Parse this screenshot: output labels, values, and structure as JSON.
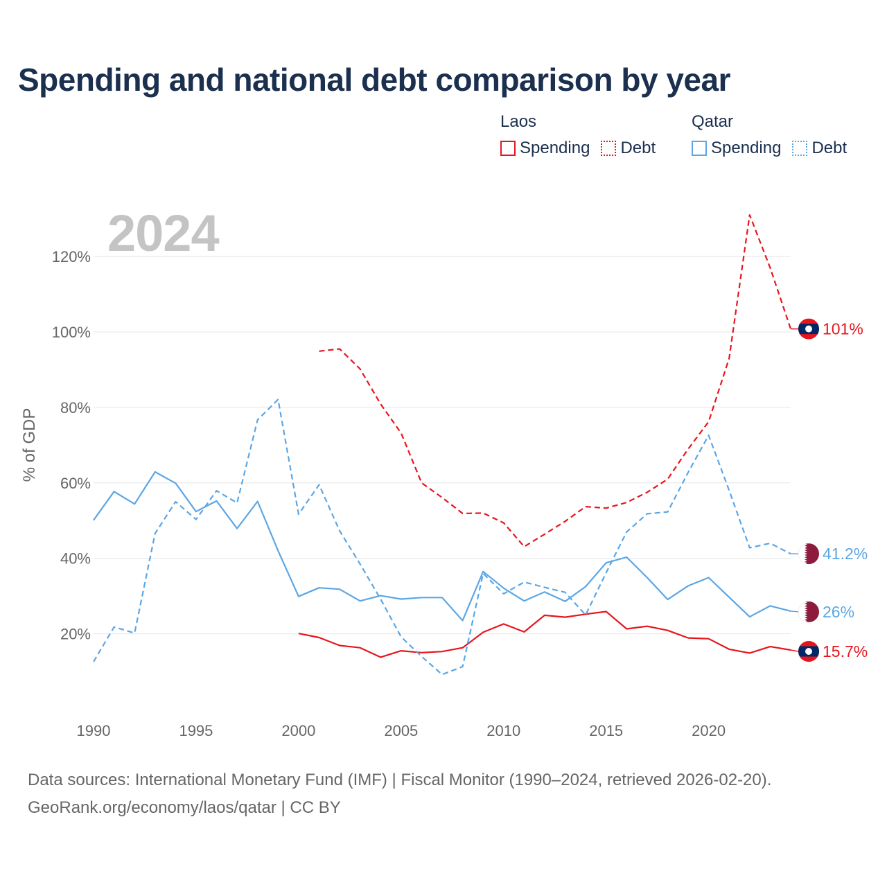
{
  "title": "Spending and national debt comparison by year",
  "year_label": "2024",
  "legend": {
    "laos": {
      "name": "Laos",
      "spending": "Spending",
      "debt": "Debt"
    },
    "qatar": {
      "name": "Qatar",
      "spending": "Spending",
      "debt": "Debt"
    }
  },
  "footer": {
    "line1": "Data sources: International Monetary Fund (IMF) | Fiscal Monitor (1990–2024, retrieved 2026-02-20).",
    "line2": "GeoRank.org/economy/laos/qatar | CC BY"
  },
  "colors": {
    "laos": "#e8141c",
    "qatar": "#5aa6e6",
    "grid": "#e6e6e6",
    "axis_text": "#666666",
    "laos_flag_blue": "#002868",
    "qatar_flag_maroon": "#8d1b3d"
  },
  "chart_data": {
    "type": "line",
    "ylabel": "% of GDP",
    "xlim": [
      1990,
      2024
    ],
    "ylim": [
      0,
      130
    ],
    "x_ticks": [
      1990,
      1995,
      2000,
      2005,
      2010,
      2015,
      2020
    ],
    "y_ticks": [
      {
        "value": 20,
        "label": "20%"
      },
      {
        "value": 40,
        "label": "40%"
      },
      {
        "value": 60,
        "label": "60%"
      },
      {
        "value": 80,
        "label": "80%"
      },
      {
        "value": 100,
        "label": "100%"
      },
      {
        "value": 120,
        "label": "120%"
      }
    ],
    "series": [
      {
        "name": "Laos Debt",
        "country": "laos",
        "kind": "debt",
        "style": "dashed",
        "x": [
          2001,
          2002,
          2003,
          2004,
          2005,
          2006,
          2007,
          2008,
          2009,
          2010,
          2011,
          2012,
          2013,
          2014,
          2015,
          2016,
          2017,
          2018,
          2019,
          2020,
          2021,
          2022,
          2023,
          2024
        ],
        "values": [
          94.9,
          95.5,
          90.2,
          80.9,
          73.2,
          60.0,
          56.1,
          51.9,
          52.0,
          49.4,
          43.1,
          46.4,
          49.8,
          53.7,
          53.3,
          54.8,
          57.5,
          61.0,
          69.0,
          76.2,
          93.0,
          131.0,
          117.0,
          100.8
        ],
        "end_label": "101%"
      },
      {
        "name": "Laos Spending",
        "country": "laos",
        "kind": "spending",
        "style": "solid",
        "x": [
          2000,
          2001,
          2002,
          2003,
          2004,
          2005,
          2006,
          2007,
          2008,
          2009,
          2010,
          2011,
          2012,
          2013,
          2014,
          2015,
          2016,
          2017,
          2018,
          2019,
          2020,
          2021,
          2022,
          2023,
          2024
        ],
        "values": [
          20.1,
          19.0,
          16.9,
          16.3,
          13.8,
          15.5,
          15.0,
          15.3,
          16.3,
          20.4,
          22.6,
          20.5,
          24.9,
          24.4,
          25.2,
          25.9,
          21.3,
          22.0,
          20.9,
          18.9,
          18.7,
          15.9,
          14.9,
          16.6,
          15.7
        ],
        "end_label": "15.7%"
      },
      {
        "name": "Qatar Debt",
        "country": "qatar",
        "kind": "debt",
        "style": "dashed",
        "x": [
          1990,
          1991,
          1992,
          1993,
          1994,
          1995,
          1996,
          1997,
          1998,
          1999,
          2000,
          2001,
          2002,
          2003,
          2004,
          2005,
          2006,
          2007,
          2008,
          2009,
          2010,
          2011,
          2012,
          2013,
          2014,
          2015,
          2016,
          2017,
          2018,
          2019,
          2020,
          2021,
          2022,
          2023,
          2024
        ],
        "values": [
          12.6,
          21.8,
          20.2,
          46.6,
          55.0,
          50.3,
          57.9,
          54.7,
          76.7,
          82.1,
          51.7,
          59.5,
          47.3,
          38.5,
          29.2,
          19.2,
          14.0,
          9.2,
          11.3,
          36.0,
          30.6,
          33.7,
          32.3,
          31.0,
          25.0,
          36.2,
          47.0,
          51.8,
          52.3,
          62.8,
          72.6,
          58.0,
          42.8,
          44.0,
          41.2
        ],
        "end_label": "41.2%"
      },
      {
        "name": "Qatar Spending",
        "country": "qatar",
        "kind": "spending",
        "style": "solid",
        "x": [
          1990,
          1991,
          1992,
          1993,
          1994,
          1995,
          1996,
          1997,
          1998,
          1999,
          2000,
          2001,
          2002,
          2003,
          2004,
          2005,
          2006,
          2007,
          2008,
          2009,
          2010,
          2011,
          2012,
          2013,
          2014,
          2015,
          2016,
          2017,
          2018,
          2019,
          2020,
          2021,
          2022,
          2023,
          2024
        ],
        "values": [
          50.1,
          57.7,
          54.4,
          62.9,
          59.9,
          52.4,
          55.2,
          47.9,
          55.1,
          42.0,
          29.9,
          32.2,
          31.8,
          28.7,
          30.1,
          29.2,
          29.6,
          29.6,
          23.5,
          36.5,
          32.1,
          28.7,
          31.1,
          28.6,
          32.5,
          38.8,
          40.3,
          34.9,
          29.1,
          32.7,
          34.9,
          29.7,
          24.5,
          27.4,
          26.0
        ],
        "end_label": "26%"
      }
    ]
  }
}
